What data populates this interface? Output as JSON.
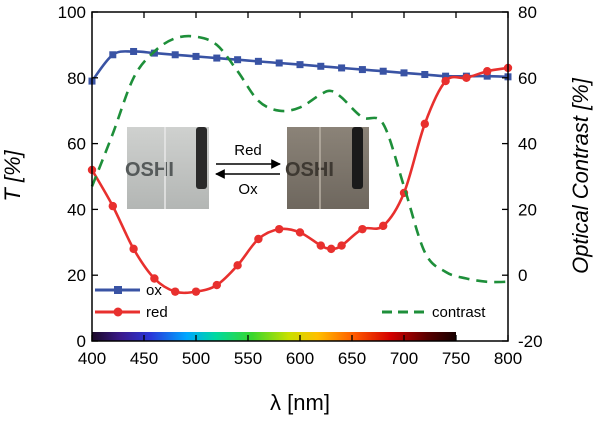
{
  "chart_data": {
    "type": "line",
    "xlabel": "λ [nm]",
    "ylabel_left": "T [%]",
    "ylabel_right": "Optical Contrast [%]",
    "xlim": [
      400,
      800
    ],
    "ylim_left": [
      0,
      100
    ],
    "ylim_right": [
      -20,
      80
    ],
    "x_ticks": [
      400,
      450,
      500,
      550,
      600,
      650,
      700,
      750,
      800
    ],
    "y_left_ticks": [
      0,
      20,
      40,
      60,
      80,
      100
    ],
    "y_right_ticks": [
      -20,
      0,
      20,
      40,
      60,
      80
    ],
    "grid": false,
    "series": [
      {
        "name": "ox",
        "axis": "left",
        "color": "#3953a4",
        "marker": "square",
        "x": [
          400,
          420,
          440,
          460,
          480,
          500,
          520,
          540,
          560,
          580,
          600,
          620,
          640,
          660,
          680,
          700,
          720,
          740,
          760,
          780,
          800
        ],
        "values": [
          79,
          87,
          88,
          87.5,
          87,
          86.5,
          86,
          85.5,
          85,
          84.5,
          84,
          83.5,
          83,
          82.5,
          82,
          81.5,
          81,
          80.5,
          80.5,
          80.5,
          80.3
        ]
      },
      {
        "name": "red",
        "axis": "left",
        "color": "#e8302e",
        "marker": "circle",
        "x": [
          400,
          420,
          440,
          460,
          480,
          500,
          520,
          540,
          560,
          580,
          600,
          620,
          630,
          640,
          660,
          680,
          700,
          720,
          740,
          760,
          780,
          800
        ],
        "values": [
          52,
          41,
          28,
          19,
          15,
          15,
          17,
          23,
          31,
          34,
          33,
          29,
          28,
          29,
          34,
          35,
          45,
          66,
          79,
          80,
          82,
          83
        ]
      },
      {
        "name": "contrast",
        "axis": "right",
        "color": "#1e8f3a",
        "style": "dashed",
        "x": [
          400,
          420,
          440,
          460,
          480,
          500,
          520,
          540,
          560,
          580,
          600,
          620,
          630,
          640,
          660,
          680,
          700,
          720,
          740,
          760,
          780,
          800
        ],
        "values": [
          27,
          43,
          60,
          68,
          72,
          72.5,
          70,
          62,
          53,
          50,
          51,
          55,
          56,
          54,
          48,
          46,
          27,
          7,
          1,
          -1,
          -2,
          -2
        ]
      }
    ],
    "legend": [
      {
        "label": "ox",
        "position": "bottom-left"
      },
      {
        "label": "red",
        "position": "bottom-left"
      },
      {
        "label": "contrast",
        "position": "bottom-right"
      }
    ],
    "spectrum_bar": {
      "from": 400,
      "to": 750
    }
  },
  "inset": {
    "arrow_top_label": "Red",
    "arrow_bottom_label": "Ox",
    "photo_text": "OSHI"
  }
}
